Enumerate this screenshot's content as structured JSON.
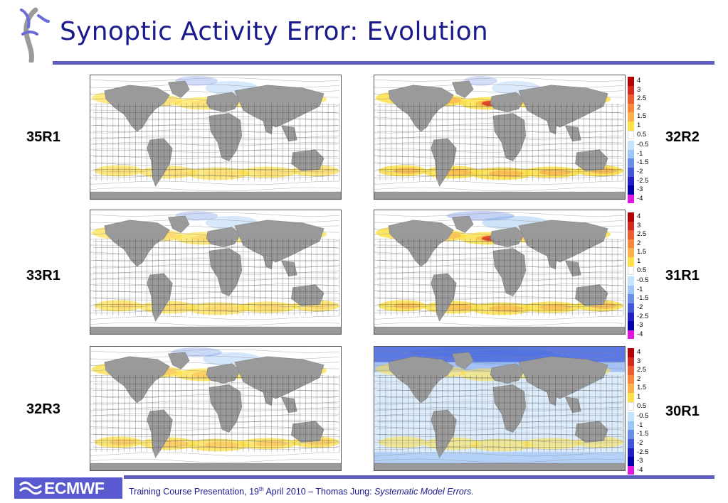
{
  "title": "Synoptic Activity Error: Evolution",
  "panels": [
    {
      "label": "35R1",
      "column": "left",
      "row": 0,
      "warm": 0.55,
      "cold": 0.25,
      "blueFill": false
    },
    {
      "label": "33R1",
      "column": "left",
      "row": 1,
      "warm": 0.6,
      "cold": 0.25,
      "blueFill": false
    },
    {
      "label": "32R3",
      "column": "left",
      "row": 2,
      "warm": 0.7,
      "cold": 0.3,
      "blueFill": false
    },
    {
      "label": "32R2",
      "column": "right",
      "row": 0,
      "warm": 0.85,
      "cold": 0.2,
      "blueFill": false
    },
    {
      "label": "31R1",
      "column": "right",
      "row": 1,
      "warm": 0.8,
      "cold": 0.4,
      "blueFill": false
    },
    {
      "label": "30R1",
      "column": "right",
      "row": 2,
      "warm": 0.35,
      "cold": 0.85,
      "blueFill": true
    }
  ],
  "colorbar": {
    "levels": [
      {
        "label": "4",
        "color": "#b40000"
      },
      {
        "label": "3",
        "color": "#d42a1e"
      },
      {
        "label": "2.5",
        "color": "#ee5a32"
      },
      {
        "label": "2",
        "color": "#f7883c"
      },
      {
        "label": "1.5",
        "color": "#fbb04e"
      },
      {
        "label": "1",
        "color": "#fde047"
      },
      {
        "label": "0.5",
        "color": "#ffffff"
      },
      {
        "label": "-0.5",
        "color": "#c4e4fb"
      },
      {
        "label": "-1",
        "color": "#9cc6f5"
      },
      {
        "label": "-1.5",
        "color": "#6b8de8"
      },
      {
        "label": "-2",
        "color": "#4355d8"
      },
      {
        "label": "-2.5",
        "color": "#2020c4"
      },
      {
        "label": "-3",
        "color": "#0000a8"
      },
      {
        "label": "-4",
        "color": "#e018e0"
      }
    ]
  },
  "footer": {
    "logo_text": "ECMWF",
    "prefix": "Training Course Presentation, 19",
    "superscript": "th",
    "middle": " April 2010 – Thomas Jung: ",
    "italic": "Systematic Model Errors."
  }
}
